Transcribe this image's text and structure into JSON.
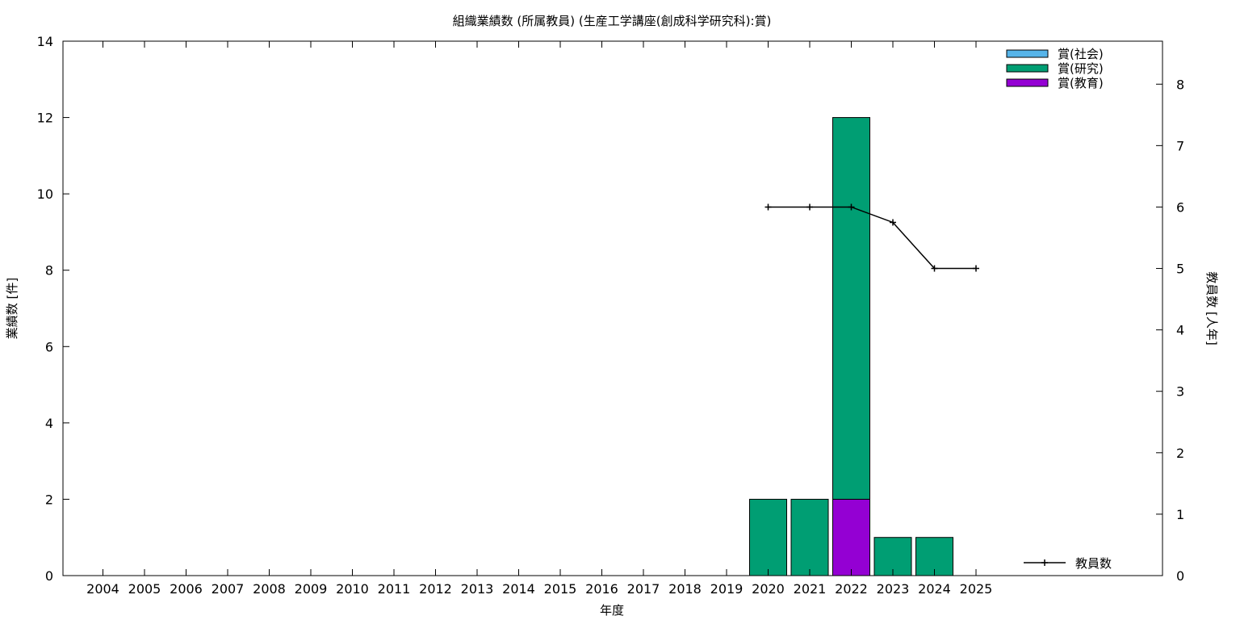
{
  "chart_data": {
    "type": "bar",
    "title": "組織業績数 (所属教員) (生産工学講座(創成科学研究科):賞)",
    "xlabel": "年度",
    "ylabel": "業績数 [件]",
    "y2label": "教員数 [人年]",
    "categories": [
      "2004",
      "2005",
      "2006",
      "2007",
      "2008",
      "2009",
      "2010",
      "2011",
      "2012",
      "2013",
      "2014",
      "2015",
      "2016",
      "2017",
      "2018",
      "2019",
      "2020",
      "2021",
      "2022",
      "2023",
      "2024",
      "2025"
    ],
    "ylim": [
      0,
      14
    ],
    "y2lim": [
      0,
      8.7
    ],
    "yticks": [
      0,
      2,
      4,
      6,
      8,
      10,
      12,
      14
    ],
    "y2ticks": [
      0,
      1,
      2,
      3,
      4,
      5,
      6,
      7,
      8
    ],
    "stacked": true,
    "series": [
      {
        "name": "賞(教育)",
        "color": "#9400d3",
        "values": [
          0,
          0,
          0,
          0,
          0,
          0,
          0,
          0,
          0,
          0,
          0,
          0,
          0,
          0,
          0,
          0,
          0,
          0,
          2,
          0,
          0,
          0
        ]
      },
      {
        "name": "賞(研究)",
        "color": "#009e73",
        "values": [
          0,
          0,
          0,
          0,
          0,
          0,
          0,
          0,
          0,
          0,
          0,
          0,
          0,
          0,
          0,
          0,
          2,
          2,
          10,
          1,
          1,
          0
        ]
      },
      {
        "name": "賞(社会)",
        "color": "#56b4e9",
        "values": [
          0,
          0,
          0,
          0,
          0,
          0,
          0,
          0,
          0,
          0,
          0,
          0,
          0,
          0,
          0,
          0,
          0,
          0,
          0,
          0,
          0,
          0
        ]
      }
    ],
    "legend_order": [
      "賞(社会)",
      "賞(研究)",
      "賞(教育)"
    ],
    "legend_position": "top-right",
    "line_series": {
      "name": "教員数",
      "axis": "right",
      "color": "#000000",
      "x": [
        "2020",
        "2021",
        "2022",
        "2023",
        "2024",
        "2025"
      ],
      "values": [
        6,
        6,
        6,
        5.75,
        5,
        5
      ]
    },
    "grid": false
  }
}
